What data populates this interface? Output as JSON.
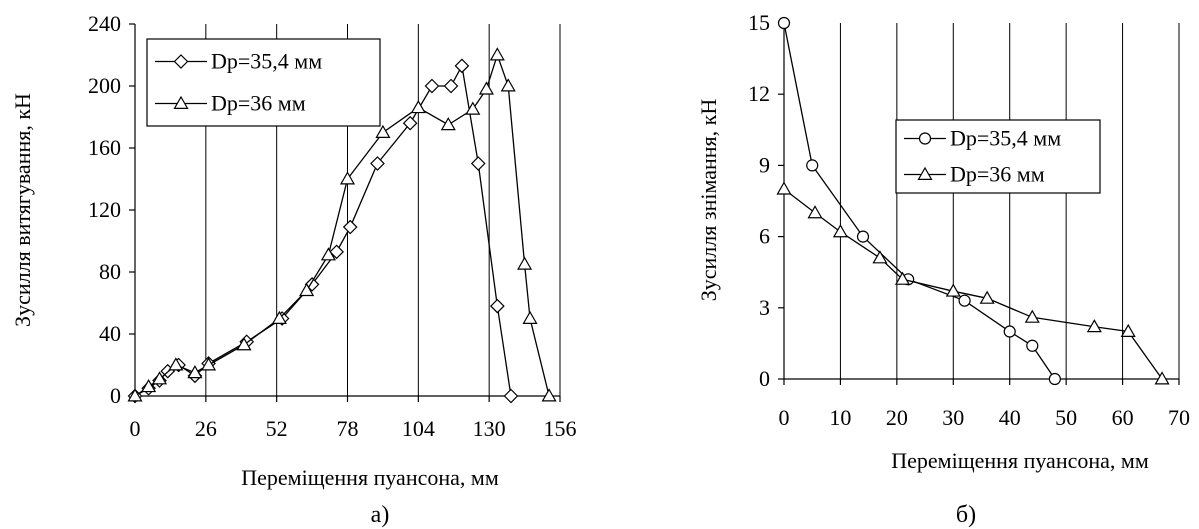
{
  "chart_data": [
    {
      "type": "line",
      "panel_label": "а)",
      "xlabel": "Переміщення пуансона, мм",
      "ylabel": "Зусилля витягування, кН",
      "xlim": [
        0,
        156
      ],
      "ylim": [
        0,
        240
      ],
      "xticks": [
        0,
        26,
        52,
        78,
        104,
        130,
        156
      ],
      "yticks": [
        0,
        40,
        80,
        120,
        160,
        200,
        240
      ],
      "grid": "vertical",
      "legend": "top-left",
      "series": [
        {
          "name": "Dp=35,4 мм",
          "marker": "diamond",
          "x": [
            0,
            5,
            9,
            12,
            16,
            22,
            27,
            41,
            54,
            65,
            74,
            79,
            89,
            101,
            109,
            116,
            120,
            126,
            133,
            138
          ],
          "y": [
            0,
            5,
            10,
            16,
            20,
            13,
            21,
            35,
            50,
            72,
            93,
            109,
            150,
            176,
            200,
            200,
            213,
            150,
            58,
            0
          ]
        },
        {
          "name": "Dp=36 мм",
          "marker": "triangle",
          "x": [
            0,
            5,
            9,
            15,
            22,
            27,
            40,
            53,
            63,
            71,
            78,
            91,
            104,
            115,
            124,
            129,
            133,
            137,
            143,
            145,
            152
          ],
          "y": [
            0,
            6,
            11,
            20,
            15,
            20,
            33,
            50,
            68,
            91,
            140,
            170,
            186,
            175,
            185,
            198,
            220,
            200,
            85,
            50,
            0
          ]
        }
      ]
    },
    {
      "type": "line",
      "panel_label": "б)",
      "xlabel": "Переміщення пуансона, мм",
      "ylabel": "Зусилля знімання, кН",
      "xlim": [
        0,
        70
      ],
      "ylim": [
        0,
        15
      ],
      "xticks": [
        0,
        10,
        20,
        30,
        40,
        50,
        60,
        70
      ],
      "yticks": [
        0,
        3,
        6,
        9,
        12,
        15
      ],
      "grid": "vertical",
      "legend": "upper-right",
      "series": [
        {
          "name": "Dp=35,4 мм",
          "marker": "circle",
          "x": [
            0,
            5,
            14,
            22,
            32,
            40,
            44,
            48
          ],
          "y": [
            15,
            9,
            6,
            4.2,
            3.3,
            2,
            1.4,
            0
          ]
        },
        {
          "name": "Dp=36 мм",
          "marker": "triangle",
          "x": [
            0,
            5.5,
            10,
            17,
            21,
            30,
            36,
            44,
            55,
            61,
            67
          ],
          "y": [
            8,
            7,
            6.2,
            5.1,
            4.2,
            3.7,
            3.4,
            2.6,
            2.2,
            2,
            0
          ]
        }
      ]
    }
  ]
}
